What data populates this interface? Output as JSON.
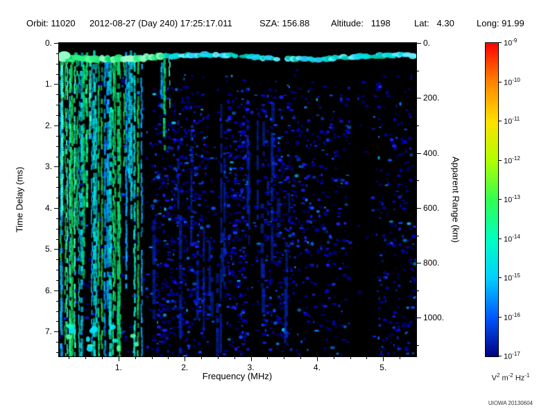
{
  "header": {
    "orbit": "Orbit: 11020",
    "datetime": "2012-08-27 (Day 240) 17:25:17.011",
    "sza": "SZA: 156.88",
    "altitude": "Altitude:   1198",
    "lat": "Lat:   4.30",
    "long": "Long: 91.99"
  },
  "footer": {
    "watermark": "UIOWA 20130604"
  },
  "chart_data": {
    "type": "heatmap",
    "subtype": "radar-sounder-ionogram-spectrogram",
    "xlabel": "Frequency (MHz)",
    "ylabel_left": "Time Delay (ms)",
    "ylabel_right": "Apparent Range (km)",
    "x_range_mhz": [
      0.1,
      5.5
    ],
    "y_range_ms": [
      0,
      7.6
    ],
    "x_major_ticks": [
      {
        "v": 1,
        "label": "1."
      },
      {
        "v": 2,
        "label": "2."
      },
      {
        "v": 3,
        "label": "3."
      },
      {
        "v": 4,
        "label": "4."
      },
      {
        "v": 5,
        "label": "5."
      }
    ],
    "x_minor_step": 0.25,
    "y_major_ticks": [
      {
        "v": 0,
        "label": "0."
      },
      {
        "v": 1,
        "label": "1."
      },
      {
        "v": 2,
        "label": "2."
      },
      {
        "v": 3,
        "label": "3."
      },
      {
        "v": 4,
        "label": "4."
      },
      {
        "v": 5,
        "label": "5."
      },
      {
        "v": 6,
        "label": "6."
      },
      {
        "v": 7,
        "label": "7."
      }
    ],
    "y_minor_step": 0.25,
    "right_axis": {
      "km_per_ms": 150,
      "major_ticks": [
        {
          "km": 0,
          "label": "0."
        },
        {
          "km": 200,
          "label": "200."
        },
        {
          "km": 400,
          "label": "400."
        },
        {
          "km": 600,
          "label": "600."
        },
        {
          "km": 800,
          "label": "800."
        },
        {
          "km": 1000,
          "label": "1000."
        }
      ],
      "minor_step_km": 100,
      "minor_max_km": 1100
    },
    "colorbar": {
      "scale": "log",
      "base": "10",
      "exponents": [
        -9,
        -10,
        -11,
        -12,
        -13,
        -14,
        -15,
        -16,
        -17
      ],
      "colors_top_to_bottom": [
        "#ff0000",
        "#ff8400",
        "#ffe000",
        "#b0ff00",
        "#30ff50",
        "#00ffc0",
        "#00d0ff",
        "#0058ff",
        "#000080"
      ],
      "units": [
        {
          "t": "V",
          "s": "2"
        },
        {
          "t": " m",
          "s": "-2"
        },
        {
          "t": " Hz",
          "s": "-1"
        }
      ]
    },
    "features": {
      "surface_echo_band": {
        "time_delay_ms": 0.34,
        "freq_span_mhz": [
          0.1,
          5.5
        ]
      },
      "plasma_harmonic_lines": {
        "freq_span_mhz": [
          0.1,
          1.35
        ],
        "approx_count": 34
      },
      "diffuse_ionospheric_scatter": {
        "freq_span_mhz": [
          1.4,
          5.5
        ],
        "time_span_ms": [
          1.1,
          7.6
        ]
      },
      "dark_columns_mhz": [
        [
          1.3,
          1.5
        ],
        [
          2.36,
          2.6
        ],
        [
          2.96,
          3.18
        ],
        [
          4.5,
          4.9
        ]
      ]
    },
    "render": {
      "seed": 20130604,
      "background": "#000000",
      "speckle": {
        "attempts": 5200,
        "palette": [
          "#000090",
          "#0000c8",
          "#1820ff",
          "#0048ff",
          "#0080ff",
          "#00c8ff"
        ]
      },
      "streaks": {
        "count": 26,
        "color": "#0028c0"
      },
      "stripes": {
        "count": 37,
        "palette": [
          "#00e070",
          "#14ff8c",
          "#00cc55",
          "#00e6c8",
          "#00d2f0",
          "#3cffc8",
          "#00aaff",
          "#16c846"
        ],
        "bottom_patch_count": 14,
        "bright_palette": [
          "#00ffcc",
          "#46ffa0",
          "#00e8ff"
        ]
      },
      "top_band": {
        "t_center_ms": 0.34,
        "left_palette": [
          "#2df084",
          "#55ff96",
          "#00dc64",
          "#96ffc8"
        ],
        "right_palette": [
          "#00e0e0",
          "#28d2ff",
          "#00c8aa",
          "#64f0ff"
        ]
      }
    }
  }
}
